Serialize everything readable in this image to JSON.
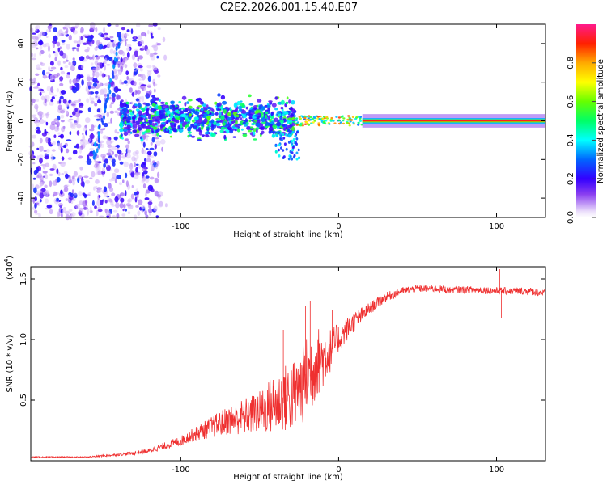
{
  "title": "C2E2.2026.001.15.40.E07",
  "chart_data": [
    {
      "type": "heatmap",
      "name": "spectrogram",
      "xlabel": "Height of straight line (km)",
      "ylabel": "Frequency (Hz)",
      "xlim": [
        -195,
        131
      ],
      "ylim": [
        -50,
        50
      ],
      "xticks": [
        -100,
        0,
        100
      ],
      "yticks": [
        -40,
        -20,
        0,
        20,
        40
      ],
      "colorbar": {
        "label": "Normalized spectral amplitude",
        "range": [
          0,
          1
        ],
        "ticks": [
          0.0,
          0.2,
          0.4,
          0.6,
          0.8
        ],
        "tick_labels": [
          "0.0",
          "0.2",
          "0.4",
          "0.6",
          "0.8"
        ]
      },
      "features": [
        {
          "description": "scattered low-amplitude noise",
          "x_range": [
            -195,
            -115
          ],
          "y_range": [
            -50,
            50
          ],
          "amplitude": 0.15
        },
        {
          "description": "drifting streak",
          "x_range": [
            -155,
            -138
          ],
          "y_range": [
            -20,
            45
          ],
          "amplitude": 0.3
        },
        {
          "description": "broad cluster near 0 Hz",
          "x_range": [
            -138,
            -30
          ],
          "y_range": [
            -10,
            12
          ],
          "amplitude": 0.5
        },
        {
          "description": "tail toward negative frequency",
          "x_range": [
            -40,
            -25
          ],
          "y_range": [
            -20,
            -5
          ],
          "amplitude": 0.3
        },
        {
          "description": "narrow tone at 0 Hz",
          "x_range": [
            15,
            131
          ],
          "y_range": [
            -1,
            1
          ],
          "amplitude": 1.0
        }
      ]
    },
    {
      "type": "line",
      "name": "snr",
      "xlabel": "Height of straight line (km)",
      "ylabel": "SNR (10 * v/v)",
      "yscale_label": "(x10",
      "yscale_exp": "4",
      "xlim": [
        -195,
        131
      ],
      "ylim": [
        0,
        1.6
      ],
      "xticks": [
        -100,
        0,
        100
      ],
      "yticks": [
        0.5,
        1.0,
        1.5
      ],
      "ytick_labels": [
        "0.5",
        "1.0",
        "1.5"
      ],
      "color": "#ef3030",
      "envelope": {
        "x": [
          -195,
          -160,
          -140,
          -130,
          -120,
          -110,
          -100,
          -90,
          -80,
          -70,
          -60,
          -50,
          -45,
          -40,
          -35,
          -30,
          -25,
          -20,
          -17,
          -14,
          -10,
          -5,
          0,
          5,
          10,
          20,
          30,
          40,
          50,
          60,
          70,
          80,
          90,
          100,
          110,
          120,
          131
        ],
        "y": [
          0.03,
          0.03,
          0.05,
          0.06,
          0.08,
          0.12,
          0.16,
          0.22,
          0.27,
          0.32,
          0.35,
          0.38,
          0.42,
          0.45,
          0.48,
          0.5,
          0.55,
          0.65,
          0.72,
          0.78,
          0.82,
          0.9,
          1.0,
          1.08,
          1.15,
          1.26,
          1.35,
          1.4,
          1.42,
          1.42,
          1.41,
          1.41,
          1.41,
          1.4,
          1.4,
          1.4,
          1.38
        ],
        "noise": [
          0.005,
          0.005,
          0.01,
          0.015,
          0.02,
          0.03,
          0.04,
          0.06,
          0.09,
          0.12,
          0.15,
          0.18,
          0.22,
          0.26,
          0.28,
          0.3,
          0.3,
          0.35,
          0.35,
          0.3,
          0.25,
          0.18,
          0.12,
          0.1,
          0.08,
          0.05,
          0.04,
          0.03,
          0.03,
          0.03,
          0.03,
          0.03,
          0.03,
          0.03,
          0.03,
          0.03,
          0.03
        ]
      },
      "spikes": [
        {
          "x": -35,
          "y": 1.08
        },
        {
          "x": -21,
          "y": 1.28
        },
        {
          "x": -18,
          "y": 1.32
        },
        {
          "x": -4,
          "y": 1.24
        },
        {
          "x": 102,
          "y": 1.58
        },
        {
          "x": 103,
          "y": 1.18
        }
      ]
    }
  ]
}
